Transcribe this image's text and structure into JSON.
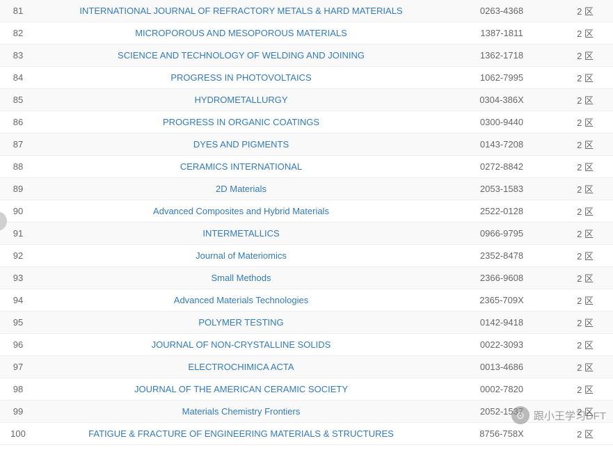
{
  "colors": {
    "link": "#337ab7",
    "text": "#666666",
    "row_odd_bg": "#f9f9f9",
    "row_even_bg": "#ffffff",
    "border": "#eeeeee"
  },
  "zone_label": "2 区",
  "rows": [
    {
      "rank": "81",
      "name": "INTERNATIONAL JOURNAL OF REFRACTORY METALS & HARD MATERIALS",
      "issn": "0263-4368",
      "zone": "2 区"
    },
    {
      "rank": "82",
      "name": "MICROPOROUS AND MESOPOROUS MATERIALS",
      "issn": "1387-1811",
      "zone": "2 区"
    },
    {
      "rank": "83",
      "name": "SCIENCE AND TECHNOLOGY OF WELDING AND JOINING",
      "issn": "1362-1718",
      "zone": "2 区"
    },
    {
      "rank": "84",
      "name": "PROGRESS IN PHOTOVOLTAICS",
      "issn": "1062-7995",
      "zone": "2 区"
    },
    {
      "rank": "85",
      "name": "HYDROMETALLURGY",
      "issn": "0304-386X",
      "zone": "2 区"
    },
    {
      "rank": "86",
      "name": "PROGRESS IN ORGANIC COATINGS",
      "issn": "0300-9440",
      "zone": "2 区"
    },
    {
      "rank": "87",
      "name": "DYES AND PIGMENTS",
      "issn": "0143-7208",
      "zone": "2 区"
    },
    {
      "rank": "88",
      "name": "CERAMICS INTERNATIONAL",
      "issn": "0272-8842",
      "zone": "2 区"
    },
    {
      "rank": "89",
      "name": "2D Materials",
      "issn": "2053-1583",
      "zone": "2 区"
    },
    {
      "rank": "90",
      "name": "Advanced Composites and Hybrid Materials",
      "issn": "2522-0128",
      "zone": "2 区"
    },
    {
      "rank": "91",
      "name": "INTERMETALLICS",
      "issn": "0966-9795",
      "zone": "2 区"
    },
    {
      "rank": "92",
      "name": "Journal of Materiomics",
      "issn": "2352-8478",
      "zone": "2 区"
    },
    {
      "rank": "93",
      "name": "Small Methods",
      "issn": "2366-9608",
      "zone": "2 区"
    },
    {
      "rank": "94",
      "name": "Advanced Materials Technologies",
      "issn": "2365-709X",
      "zone": "2 区"
    },
    {
      "rank": "95",
      "name": "POLYMER TESTING",
      "issn": "0142-9418",
      "zone": "2 区"
    },
    {
      "rank": "96",
      "name": "JOURNAL OF NON-CRYSTALLINE SOLIDS",
      "issn": "0022-3093",
      "zone": "2 区"
    },
    {
      "rank": "97",
      "name": "ELECTROCHIMICA ACTA",
      "issn": "0013-4686",
      "zone": "2 区"
    },
    {
      "rank": "98",
      "name": "JOURNAL OF THE AMERICAN CERAMIC SOCIETY",
      "issn": "0002-7820",
      "zone": "2 区"
    },
    {
      "rank": "99",
      "name": "Materials Chemistry Frontiers",
      "issn": "2052-1537",
      "zone": "2 区"
    },
    {
      "rank": "100",
      "name": "FATIGUE & FRACTURE OF ENGINEERING MATERIALS & STRUCTURES",
      "issn": "8756-758X",
      "zone": "2 区"
    }
  ],
  "watermark": {
    "icon": "⊙",
    "text": "跟小王学习DFT"
  }
}
